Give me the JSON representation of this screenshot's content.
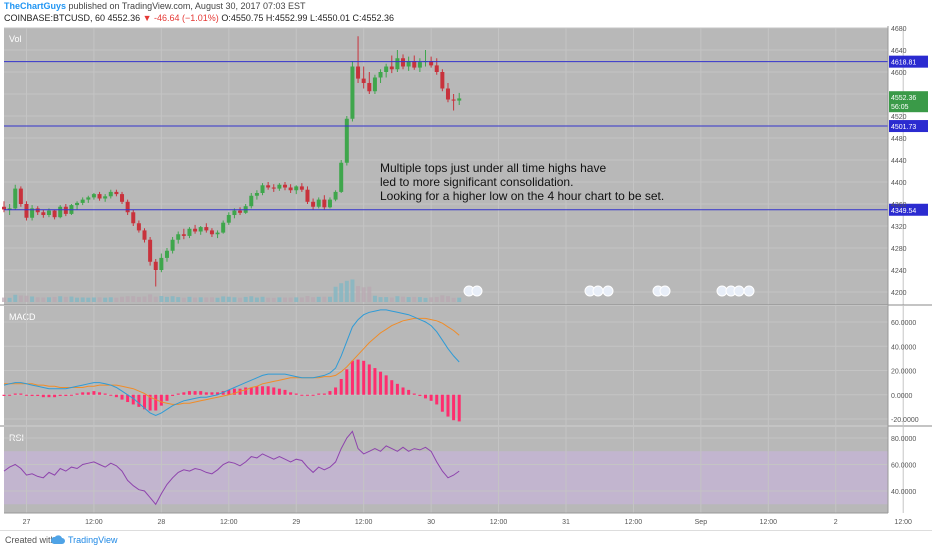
{
  "header": {
    "author": "TheChartGuys",
    "published_text": " published on TradingView.com, August 30, 2017 07:03 EST",
    "symbol": "COINBASE:BTCUSD, 60",
    "last": "4552.36",
    "change": "▼ -46.64 (−1.01%)",
    "o": "O:4550.75",
    "h": "H:4552.99",
    "l": "L:4550.01",
    "c": "C:4552.36"
  },
  "panes": {
    "main": "Vol",
    "macd": "MACD",
    "rsi": "RSI"
  },
  "annotation": {
    "lines": [
      "Multiple tops just under all time highs have",
      "led to more significant consolidation.",
      "Looking for a higher low on the 4 hour chart to be set."
    ]
  },
  "footer": {
    "created_with": "Created with",
    "brand": "TradingView"
  },
  "colors": {
    "up": "#3fa64c",
    "down": "#c8323c",
    "hline": "#3333cc",
    "macd_line": "#2f9bd6",
    "signal_line": "#f08c28",
    "hist": "#ff2d6e",
    "rsi_line": "#8e44ad",
    "rsi_band": "#c8b4dc",
    "pane_bg": "#b8b8b8"
  },
  "chart_data": {
    "type": "candlestick",
    "price_axis": {
      "ticks": [
        4200,
        4240,
        4280,
        4320,
        4360,
        4400,
        4440,
        4480,
        4520,
        4560,
        4600,
        4640,
        4680
      ]
    },
    "price_labels": {
      "last": "4552.36",
      "countdown": "56:05"
    },
    "horizontal_lines": [
      {
        "value": 4618.81,
        "label": "4618.81"
      },
      {
        "value": 4501.73,
        "label": "4501.73"
      },
      {
        "value": 4349.54,
        "label": "4349.54"
      }
    ],
    "time_labels": [
      {
        "label": "27",
        "i": 4
      },
      {
        "label": "12:00",
        "i": 16
      },
      {
        "label": "28",
        "i": 28
      },
      {
        "label": "12:00",
        "i": 40
      },
      {
        "label": "29",
        "i": 52
      },
      {
        "label": "12:00",
        "i": 64
      },
      {
        "label": "30",
        "i": 76
      },
      {
        "label": "12:00",
        "i": 88
      },
      {
        "label": "31",
        "i": 100
      },
      {
        "label": "12:00",
        "i": 112
      },
      {
        "label": "Sep",
        "i": 124
      },
      {
        "label": "12:00",
        "i": 136
      },
      {
        "label": "2",
        "i": 148
      },
      {
        "label": "12:00",
        "i": 160
      }
    ],
    "candles": [
      [
        4355,
        4365,
        4345,
        4350
      ],
      [
        4350,
        4360,
        4340,
        4352
      ],
      [
        4352,
        4395,
        4350,
        4388
      ],
      [
        4388,
        4392,
        4355,
        4360
      ],
      [
        4360,
        4365,
        4330,
        4335
      ],
      [
        4335,
        4358,
        4330,
        4352
      ],
      [
        4352,
        4356,
        4340,
        4345
      ],
      [
        4345,
        4350,
        4335,
        4340
      ],
      [
        4340,
        4352,
        4336,
        4348
      ],
      [
        4348,
        4350,
        4332,
        4336
      ],
      [
        4336,
        4358,
        4334,
        4355
      ],
      [
        4355,
        4360,
        4338,
        4342
      ],
      [
        4342,
        4360,
        4340,
        4358
      ],
      [
        4358,
        4365,
        4350,
        4362
      ],
      [
        4362,
        4372,
        4358,
        4368
      ],
      [
        4368,
        4375,
        4362,
        4372
      ],
      [
        4372,
        4380,
        4368,
        4378
      ],
      [
        4378,
        4382,
        4366,
        4370
      ],
      [
        4370,
        4378,
        4364,
        4374
      ],
      [
        4374,
        4386,
        4370,
        4382
      ],
      [
        4382,
        4386,
        4374,
        4378
      ],
      [
        4378,
        4382,
        4360,
        4364
      ],
      [
        4364,
        4368,
        4340,
        4345
      ],
      [
        4345,
        4350,
        4320,
        4325
      ],
      [
        4325,
        4330,
        4308,
        4312
      ],
      [
        4312,
        4316,
        4290,
        4295
      ],
      [
        4295,
        4300,
        4248,
        4255
      ],
      [
        4255,
        4260,
        4210,
        4240
      ],
      [
        4240,
        4270,
        4236,
        4262
      ],
      [
        4262,
        4280,
        4255,
        4275
      ],
      [
        4275,
        4300,
        4270,
        4295
      ],
      [
        4295,
        4310,
        4288,
        4305
      ],
      [
        4305,
        4315,
        4296,
        4302
      ],
      [
        4302,
        4318,
        4298,
        4315
      ],
      [
        4315,
        4322,
        4306,
        4310
      ],
      [
        4310,
        4320,
        4304,
        4318
      ],
      [
        4318,
        4325,
        4308,
        4312
      ],
      [
        4312,
        4316,
        4300,
        4305
      ],
      [
        4305,
        4312,
        4298,
        4308
      ],
      [
        4308,
        4330,
        4306,
        4326
      ],
      [
        4326,
        4345,
        4322,
        4340
      ],
      [
        4340,
        4352,
        4334,
        4348
      ],
      [
        4348,
        4354,
        4340,
        4344
      ],
      [
        4344,
        4360,
        4342,
        4356
      ],
      [
        4356,
        4380,
        4352,
        4375
      ],
      [
        4375,
        4385,
        4368,
        4380
      ],
      [
        4380,
        4398,
        4376,
        4394
      ],
      [
        4394,
        4400,
        4386,
        4390
      ],
      [
        4390,
        4396,
        4382,
        4388
      ],
      [
        4388,
        4398,
        4384,
        4395
      ],
      [
        4395,
        4400,
        4385,
        4390
      ],
      [
        4390,
        4396,
        4380,
        4385
      ],
      [
        4385,
        4394,
        4378,
        4392
      ],
      [
        4392,
        4398,
        4382,
        4386
      ],
      [
        4386,
        4392,
        4360,
        4364
      ],
      [
        4364,
        4370,
        4350,
        4355
      ],
      [
        4355,
        4372,
        4352,
        4368
      ],
      [
        4368,
        4376,
        4350,
        4354
      ],
      [
        4354,
        4372,
        4352,
        4368
      ],
      [
        4368,
        4385,
        4365,
        4382
      ],
      [
        4382,
        4440,
        4380,
        4435
      ],
      [
        4435,
        4520,
        4430,
        4515
      ],
      [
        4515,
        4620,
        4510,
        4610
      ],
      [
        4610,
        4665,
        4580,
        4588
      ],
      [
        4588,
        4610,
        4570,
        4580
      ],
      [
        4580,
        4600,
        4560,
        4565
      ],
      [
        4565,
        4595,
        4560,
        4590
      ],
      [
        4590,
        4605,
        4580,
        4600
      ],
      [
        4600,
        4615,
        4590,
        4610
      ],
      [
        4610,
        4630,
        4598,
        4605
      ],
      [
        4605,
        4640,
        4600,
        4625
      ],
      [
        4625,
        4632,
        4605,
        4610
      ],
      [
        4610,
        4628,
        4602,
        4620
      ],
      [
        4620,
        4630,
        4604,
        4608
      ],
      [
        4608,
        4625,
        4600,
        4618
      ],
      [
        4618,
        4640,
        4610,
        4620
      ],
      [
        4620,
        4628,
        4608,
        4612
      ],
      [
        4612,
        4625,
        4595,
        4600
      ],
      [
        4600,
        4605,
        4565,
        4570
      ],
      [
        4570,
        4580,
        4545,
        4550
      ],
      [
        4550,
        4560,
        4530,
        4548
      ],
      [
        4548,
        4562,
        4540,
        4552
      ]
    ],
    "macd": {
      "axis_ticks": [
        -20,
        0,
        20,
        40,
        60
      ],
      "macd": [
        8,
        9,
        10,
        10,
        9,
        8,
        7,
        6,
        5,
        5,
        5,
        5,
        6,
        7,
        8,
        9,
        10,
        10,
        9,
        8,
        6,
        3,
        0,
        -3,
        -7,
        -11,
        -15,
        -17,
        -15,
        -12,
        -9,
        -7,
        -5,
        -4,
        -3,
        -2,
        -2,
        -1,
        0,
        2,
        4,
        6,
        8,
        10,
        12,
        14,
        16,
        17,
        17,
        17,
        17,
        16,
        15,
        14,
        14,
        14,
        15,
        16,
        18,
        22,
        32,
        44,
        56,
        62,
        66,
        68,
        69,
        70,
        70,
        69,
        68,
        67,
        66,
        64,
        62,
        60,
        57,
        52,
        45,
        38,
        32,
        27
      ],
      "signal": [
        9,
        9,
        9,
        9,
        9,
        9,
        8,
        8,
        7,
        7,
        6,
        6,
        6,
        6,
        6,
        7,
        7,
        8,
        8,
        8,
        8,
        7,
        6,
        5,
        3,
        1,
        -2,
        -4,
        -6,
        -7,
        -8,
        -8,
        -7,
        -7,
        -6,
        -5,
        -4,
        -3,
        -2,
        -1,
        0,
        1,
        3,
        4,
        6,
        7,
        9,
        10,
        11,
        12,
        13,
        14,
        14,
        14,
        14,
        14,
        14,
        15,
        15,
        16,
        19,
        23,
        28,
        33,
        38,
        43,
        47,
        51,
        54,
        57,
        59,
        61,
        62,
        63,
        63,
        63,
        62,
        61,
        59,
        56,
        53,
        49
      ],
      "hist": [
        -1,
        0,
        1,
        1,
        0,
        -1,
        -1,
        -2,
        -2,
        -2,
        -1,
        -1,
        0,
        1,
        2,
        2,
        3,
        2,
        1,
        0,
        -2,
        -4,
        -6,
        -8,
        -10,
        -12,
        -13,
        -13,
        -9,
        -5,
        -1,
        1,
        2,
        3,
        3,
        3,
        2,
        2,
        2,
        3,
        4,
        5,
        5,
        6,
        6,
        7,
        7,
        7,
        6,
        5,
        4,
        2,
        1,
        0,
        0,
        0,
        1,
        1,
        3,
        6,
        13,
        21,
        28,
        29,
        28,
        25,
        22,
        19,
        16,
        12,
        9,
        6,
        4,
        1,
        -1,
        -3,
        -5,
        -8,
        -14,
        -18,
        -21,
        -22
      ]
    },
    "rsi": {
      "axis_ticks": [
        40,
        60,
        80
      ],
      "band": [
        30,
        70
      ],
      "values": [
        55,
        58,
        60,
        57,
        52,
        53,
        51,
        50,
        54,
        52,
        57,
        55,
        58,
        57,
        60,
        61,
        62,
        60,
        58,
        61,
        59,
        55,
        48,
        44,
        41,
        40,
        35,
        30,
        38,
        45,
        50,
        54,
        56,
        55,
        57,
        56,
        54,
        53,
        56,
        60,
        62,
        61,
        59,
        62,
        66,
        65,
        68,
        66,
        64,
        66,
        64,
        62,
        64,
        63,
        58,
        54,
        58,
        56,
        58,
        62,
        72,
        80,
        85,
        72,
        68,
        70,
        72,
        70,
        74,
        72,
        70,
        73,
        70,
        72,
        71,
        73,
        70,
        62,
        55,
        50,
        52,
        55
      ]
    }
  }
}
